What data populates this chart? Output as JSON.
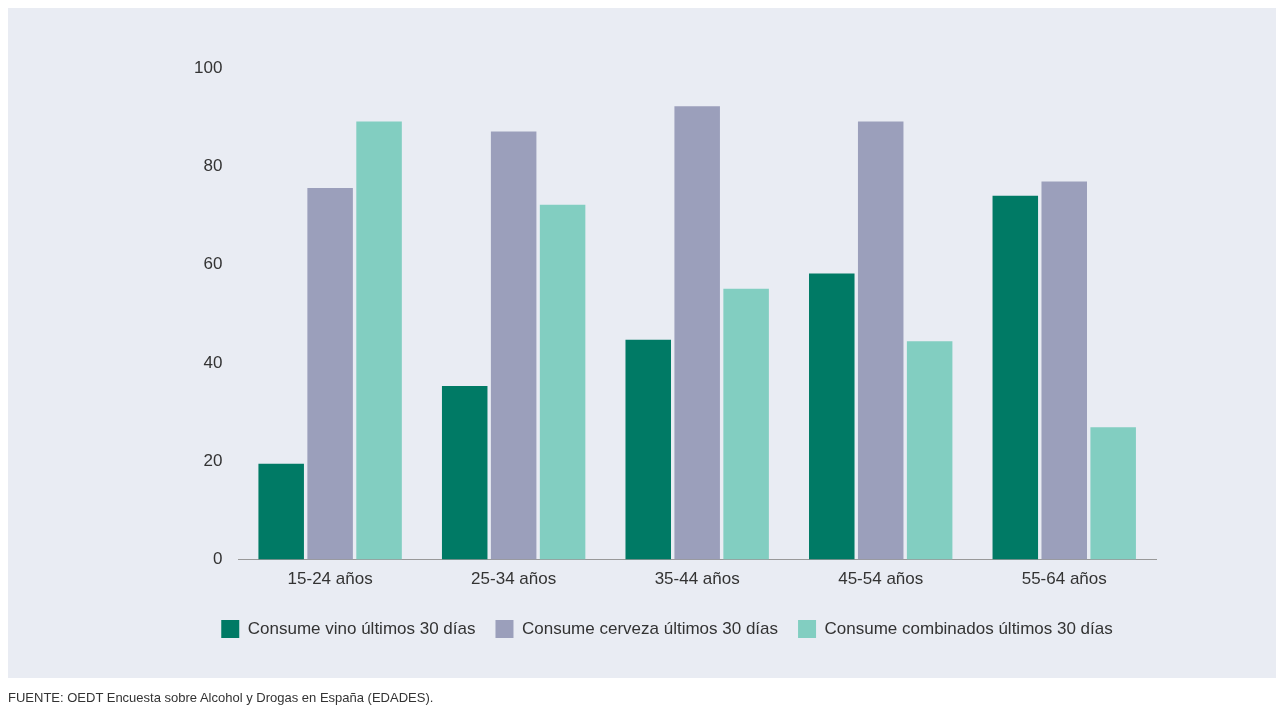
{
  "chart_data": {
    "type": "bar",
    "categories": [
      "15-24 años",
      "25-34 años",
      "35-44 años",
      "45-54 años",
      "55-64 años"
    ],
    "series": [
      {
        "name": "Consume vino últimos 30 días",
        "color": "#007a65",
        "values": [
          19.5,
          35.3,
          44.7,
          58.2,
          74
        ]
      },
      {
        "name": "Consume cerveza últimos 30 días",
        "color": "#9b9fbb",
        "values": [
          75.6,
          87.1,
          92.2,
          89.1,
          76.9
        ]
      },
      {
        "name": "Consume combinados últimos 30 días",
        "color": "#82cec1",
        "values": [
          89.1,
          72.2,
          55.1,
          44.4,
          26.9
        ]
      }
    ],
    "ylim": [
      0,
      100
    ],
    "yticks": [
      0,
      20,
      40,
      60,
      80,
      100
    ],
    "grid": false,
    "legend": "bottom",
    "annotations": [
      "FUENTE: OEDT Encuesta sobre Alcohol y Drogas en España (EDADES)."
    ]
  }
}
